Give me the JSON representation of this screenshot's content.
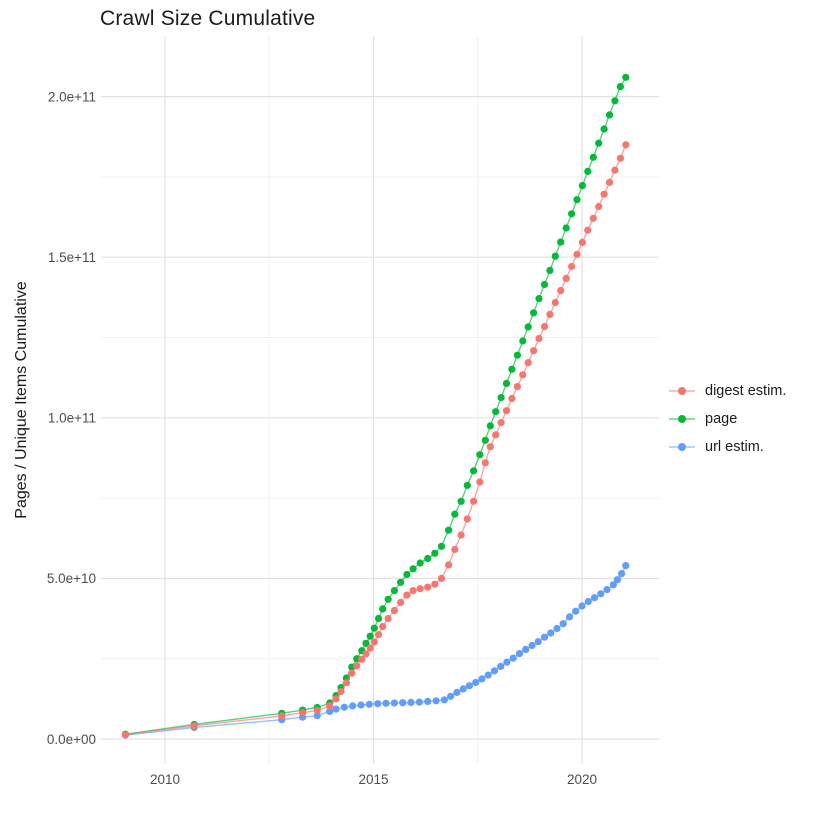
{
  "chart_data": {
    "type": "scatter",
    "title": "Crawl Size Cumulative",
    "xlabel": "",
    "ylabel": "Pages / Unique Items Cumulative",
    "value_unit": "billions (1e9) of pages / unique items",
    "xlim": [
      2008.5,
      2021.9
    ],
    "ylim_billions": [
      0,
      219
    ],
    "grid": {
      "x_major": [
        2010,
        2015,
        2020
      ],
      "x_minor": [
        2012.5,
        2017.5
      ],
      "y_major_billions": [
        0,
        50,
        100,
        150,
        200
      ],
      "y_minor_billions": [
        25,
        75,
        125,
        175
      ]
    },
    "x_ticks": [
      {
        "value": 2010,
        "label": "2010"
      },
      {
        "value": 2015,
        "label": "2015"
      },
      {
        "value": 2020,
        "label": "2020"
      }
    ],
    "y_ticks": [
      {
        "value_billions": 0,
        "label": "0.0e+00"
      },
      {
        "value_billions": 50,
        "label": "5.0e+10"
      },
      {
        "value_billions": 100,
        "label": "1.0e+11"
      },
      {
        "value_billions": 150,
        "label": "1.5e+11"
      },
      {
        "value_billions": 200,
        "label": "2.0e+11"
      }
    ],
    "legend_position": "right",
    "series": [
      {
        "name": "digest estim.",
        "color": "#F8766D",
        "points": [
          [
            2009.05,
            1.3
          ],
          [
            2010.7,
            4.1
          ],
          [
            2012.8,
            7.2
          ],
          [
            2013.3,
            8.2
          ],
          [
            2013.65,
            8.9
          ],
          [
            2013.95,
            10.3
          ],
          [
            2014.1,
            12.5
          ],
          [
            2014.22,
            14.8
          ],
          [
            2014.35,
            17.5
          ],
          [
            2014.48,
            20.5
          ],
          [
            2014.6,
            22.8
          ],
          [
            2014.72,
            24.8
          ],
          [
            2014.82,
            26.5
          ],
          [
            2014.92,
            28.3
          ],
          [
            2015.02,
            30.2
          ],
          [
            2015.12,
            32.5
          ],
          [
            2015.22,
            35
          ],
          [
            2015.35,
            37.5
          ],
          [
            2015.5,
            40
          ],
          [
            2015.65,
            42.5
          ],
          [
            2015.8,
            44.8
          ],
          [
            2015.95,
            46.2
          ],
          [
            2016.12,
            46.8
          ],
          [
            2016.3,
            47.3
          ],
          [
            2016.47,
            48.2
          ],
          [
            2016.63,
            50
          ],
          [
            2016.8,
            54.2
          ],
          [
            2016.95,
            59
          ],
          [
            2017.1,
            63.5
          ],
          [
            2017.25,
            68.5
          ],
          [
            2017.4,
            74
          ],
          [
            2017.55,
            80
          ],
          [
            2017.68,
            86
          ],
          [
            2017.8,
            91
          ],
          [
            2017.93,
            94.7
          ],
          [
            2018.06,
            98.5
          ],
          [
            2018.19,
            102.2
          ],
          [
            2018.32,
            106
          ],
          [
            2018.45,
            109.7
          ],
          [
            2018.58,
            113.4
          ],
          [
            2018.71,
            117.2
          ],
          [
            2018.84,
            120.9
          ],
          [
            2018.97,
            124.7
          ],
          [
            2019.1,
            128.4
          ],
          [
            2019.23,
            132.2
          ],
          [
            2019.36,
            135.9
          ],
          [
            2019.49,
            139.6
          ],
          [
            2019.62,
            143.4
          ],
          [
            2019.75,
            147.1
          ],
          [
            2019.88,
            150.9
          ],
          [
            2020.01,
            154.6
          ],
          [
            2020.14,
            158.4
          ],
          [
            2020.27,
            162.1
          ],
          [
            2020.4,
            165.8
          ],
          [
            2020.53,
            169.6
          ],
          [
            2020.66,
            173.3
          ],
          [
            2020.79,
            177.1
          ],
          [
            2020.92,
            180.8
          ],
          [
            2021.05,
            185
          ]
        ]
      },
      {
        "name": "page",
        "color": "#00BA38",
        "points": [
          [
            2009.05,
            1.5
          ],
          [
            2010.7,
            4.5
          ],
          [
            2012.8,
            8
          ],
          [
            2013.3,
            9
          ],
          [
            2013.65,
            9.8
          ],
          [
            2013.95,
            11.2
          ],
          [
            2014.1,
            13.5
          ],
          [
            2014.22,
            16
          ],
          [
            2014.35,
            19
          ],
          [
            2014.48,
            22.4
          ],
          [
            2014.6,
            25
          ],
          [
            2014.72,
            27.5
          ],
          [
            2014.82,
            29.8
          ],
          [
            2014.92,
            32
          ],
          [
            2015.02,
            34.5
          ],
          [
            2015.12,
            37.5
          ],
          [
            2015.22,
            40.5
          ],
          [
            2015.35,
            43.5
          ],
          [
            2015.5,
            46.2
          ],
          [
            2015.65,
            48.8
          ],
          [
            2015.8,
            51.2
          ],
          [
            2015.95,
            53
          ],
          [
            2016.12,
            54.8
          ],
          [
            2016.3,
            56.2
          ],
          [
            2016.47,
            57.8
          ],
          [
            2016.63,
            60
          ],
          [
            2016.8,
            65
          ],
          [
            2016.95,
            70
          ],
          [
            2017.1,
            74
          ],
          [
            2017.25,
            79
          ],
          [
            2017.4,
            83.5
          ],
          [
            2017.55,
            88.5
          ],
          [
            2017.68,
            93
          ],
          [
            2017.8,
            97.5
          ],
          [
            2017.93,
            101.9
          ],
          [
            2018.06,
            106.3
          ],
          [
            2018.19,
            110.7
          ],
          [
            2018.32,
            115.1
          ],
          [
            2018.45,
            119.5
          ],
          [
            2018.58,
            123.9
          ],
          [
            2018.71,
            128.3
          ],
          [
            2018.84,
            132.7
          ],
          [
            2018.97,
            137.1
          ],
          [
            2019.1,
            141.5
          ],
          [
            2019.23,
            145.9
          ],
          [
            2019.36,
            150.3
          ],
          [
            2019.49,
            154.7
          ],
          [
            2019.62,
            159.1
          ],
          [
            2019.75,
            163.5
          ],
          [
            2019.88,
            167.9
          ],
          [
            2020.01,
            172.3
          ],
          [
            2020.14,
            176.7
          ],
          [
            2020.27,
            181.1
          ],
          [
            2020.4,
            185.5
          ],
          [
            2020.53,
            189.9
          ],
          [
            2020.66,
            194.3
          ],
          [
            2020.79,
            198.7
          ],
          [
            2020.92,
            203.1
          ],
          [
            2021.05,
            206
          ]
        ]
      },
      {
        "name": "url estim.",
        "color": "#619CFF",
        "points": [
          [
            2009.05,
            1.2
          ],
          [
            2010.7,
            3.6
          ],
          [
            2012.8,
            6
          ],
          [
            2013.3,
            6.8
          ],
          [
            2013.65,
            7.3
          ],
          [
            2013.95,
            8.6
          ],
          [
            2014.1,
            9.3
          ],
          [
            2014.3,
            9.9
          ],
          [
            2014.5,
            10.3
          ],
          [
            2014.7,
            10.6
          ],
          [
            2014.9,
            10.8
          ],
          [
            2015.1,
            11
          ],
          [
            2015.3,
            11.1
          ],
          [
            2015.5,
            11.2
          ],
          [
            2015.7,
            11.3
          ],
          [
            2015.9,
            11.4
          ],
          [
            2016.1,
            11.5
          ],
          [
            2016.3,
            11.7
          ],
          [
            2016.5,
            11.9
          ],
          [
            2016.7,
            12.2
          ],
          [
            2016.85,
            13.3
          ],
          [
            2017,
            14.5
          ],
          [
            2017.15,
            15.6
          ],
          [
            2017.3,
            16.6
          ],
          [
            2017.45,
            17.6
          ],
          [
            2017.6,
            18.7
          ],
          [
            2017.75,
            19.9
          ],
          [
            2017.9,
            21.2
          ],
          [
            2018.05,
            22.6
          ],
          [
            2018.2,
            23.9
          ],
          [
            2018.35,
            25.2
          ],
          [
            2018.5,
            26.6
          ],
          [
            2018.65,
            27.9
          ],
          [
            2018.8,
            29.1
          ],
          [
            2018.95,
            30.3
          ],
          [
            2019.1,
            31.7
          ],
          [
            2019.25,
            33
          ],
          [
            2019.4,
            34.4
          ],
          [
            2019.55,
            35.9
          ],
          [
            2019.7,
            38
          ],
          [
            2019.85,
            39.8
          ],
          [
            2020,
            41.4
          ],
          [
            2020.15,
            42.8
          ],
          [
            2020.3,
            44
          ],
          [
            2020.45,
            45.2
          ],
          [
            2020.6,
            46.5
          ],
          [
            2020.75,
            48
          ],
          [
            2020.85,
            49.6
          ],
          [
            2020.95,
            51.5
          ],
          [
            2021.05,
            54
          ]
        ]
      }
    ]
  }
}
